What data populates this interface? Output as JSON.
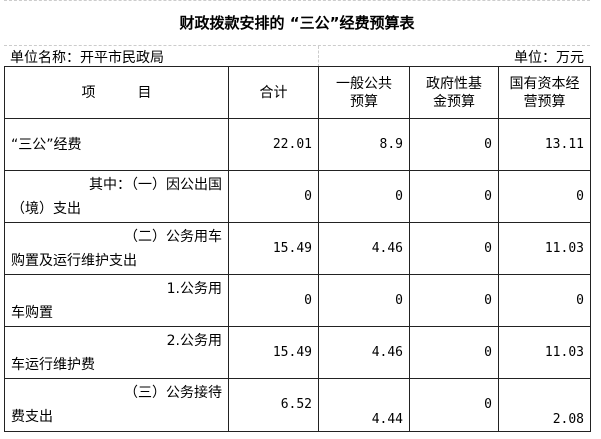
{
  "title": "财政拨款安排的 “三公”经费预算表",
  "unit_name": "单位名称：开平市民政局",
  "unit": "单位：万元",
  "headers": [
    "项　　　目",
    "合计",
    "一般公共预算",
    "政府性基金预算",
    "国有资本经营预算"
  ],
  "header_lines": {
    "c2a": "一般公共",
    "c2b": "预算",
    "c3a": "政府性基",
    "c3b": "金预算",
    "c4a": "国有资本经",
    "c4b": "营预算"
  },
  "rows": [
    {
      "line1": "",
      "line2": "“三公”经费",
      "total": "22.01",
      "general": "8.9",
      "fund": "0",
      "state": "13.11"
    },
    {
      "line1": "其中：（一）因公出国",
      "line2": "（境）支出",
      "total": "0",
      "general": "0",
      "fund": "0",
      "state": "0"
    },
    {
      "line1": "（二）公务用车",
      "line2": "购置及运行维护支出",
      "total": "15.49",
      "general": "4.46",
      "fund": "0",
      "state": "11.03"
    },
    {
      "line1": "1.公务用",
      "line2": "车购置",
      "total": "0",
      "general": "0",
      "fund": "0",
      "state": "0"
    },
    {
      "line1": "2.公务用",
      "line2": "车运行维护费",
      "total": "15.49",
      "general": "4.46",
      "fund": "0",
      "state": "11.03"
    },
    {
      "line1": "（三）公务接待",
      "line2": "费支出",
      "total": "6.52",
      "general": "4.44",
      "fund": "0",
      "state": "2.08"
    }
  ]
}
